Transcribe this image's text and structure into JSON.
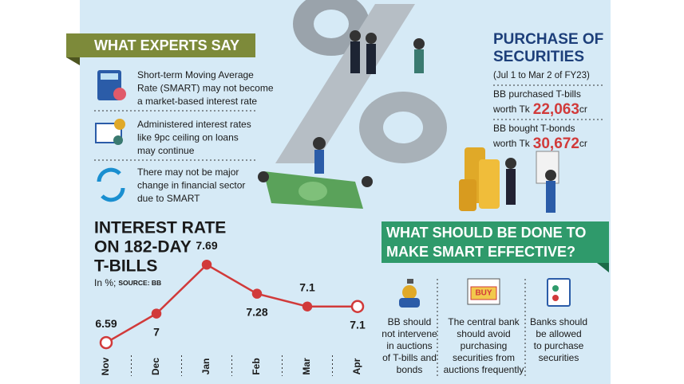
{
  "experts": {
    "title": "WHAT EXPERTS SAY",
    "items": [
      [
        "Short-term Moving Average",
        "Rate (SMART) may not become",
        "a market-based interest rate"
      ],
      [
        "Administered interest rates",
        "like 9pc ceiling on loans",
        "may continue"
      ],
      [
        "There may not be major",
        "change in financial sector",
        "due to SMART"
      ]
    ]
  },
  "purchase": {
    "title": [
      "PURCHASE OF",
      "SECURITIES"
    ],
    "period": "(Jul 1 to Mar 2 of FY23)",
    "items": [
      {
        "text": "BB purchased T-bills",
        "prefix": "worth Tk",
        "amount": "22,063",
        "suffix": "cr"
      },
      {
        "text": "BB bought T-bonds",
        "prefix": "worth Tk",
        "amount": "30,672",
        "suffix": "cr"
      }
    ]
  },
  "actions": {
    "title": [
      "WHAT SHOULD BE DONE TO",
      "MAKE SMART EFFECTIVE?"
    ],
    "icon_text": "BUY",
    "items": [
      [
        "BB should",
        "not intervene",
        "in auctions",
        "of T-bills and",
        "bonds"
      ],
      [
        "The central bank",
        "should avoid",
        "purchasing",
        "securities from",
        "auctions frequently"
      ],
      [
        "Banks should",
        "be allowed",
        "to purchase",
        "securities"
      ]
    ]
  },
  "chart_data": {
    "type": "line",
    "title": [
      "INTEREST RATE",
      "ON 182-DAY",
      "T-BILLS"
    ],
    "unit": "In %;",
    "source": "SOURCE: BB",
    "categories": [
      "Nov",
      "Dec",
      "Jan",
      "Feb",
      "Mar",
      "Apr"
    ],
    "values": [
      6.59,
      7,
      7.69,
      7.28,
      7.1,
      7.1
    ],
    "color": "#d13a3a",
    "ylim": [
      6.4,
      7.9
    ]
  }
}
